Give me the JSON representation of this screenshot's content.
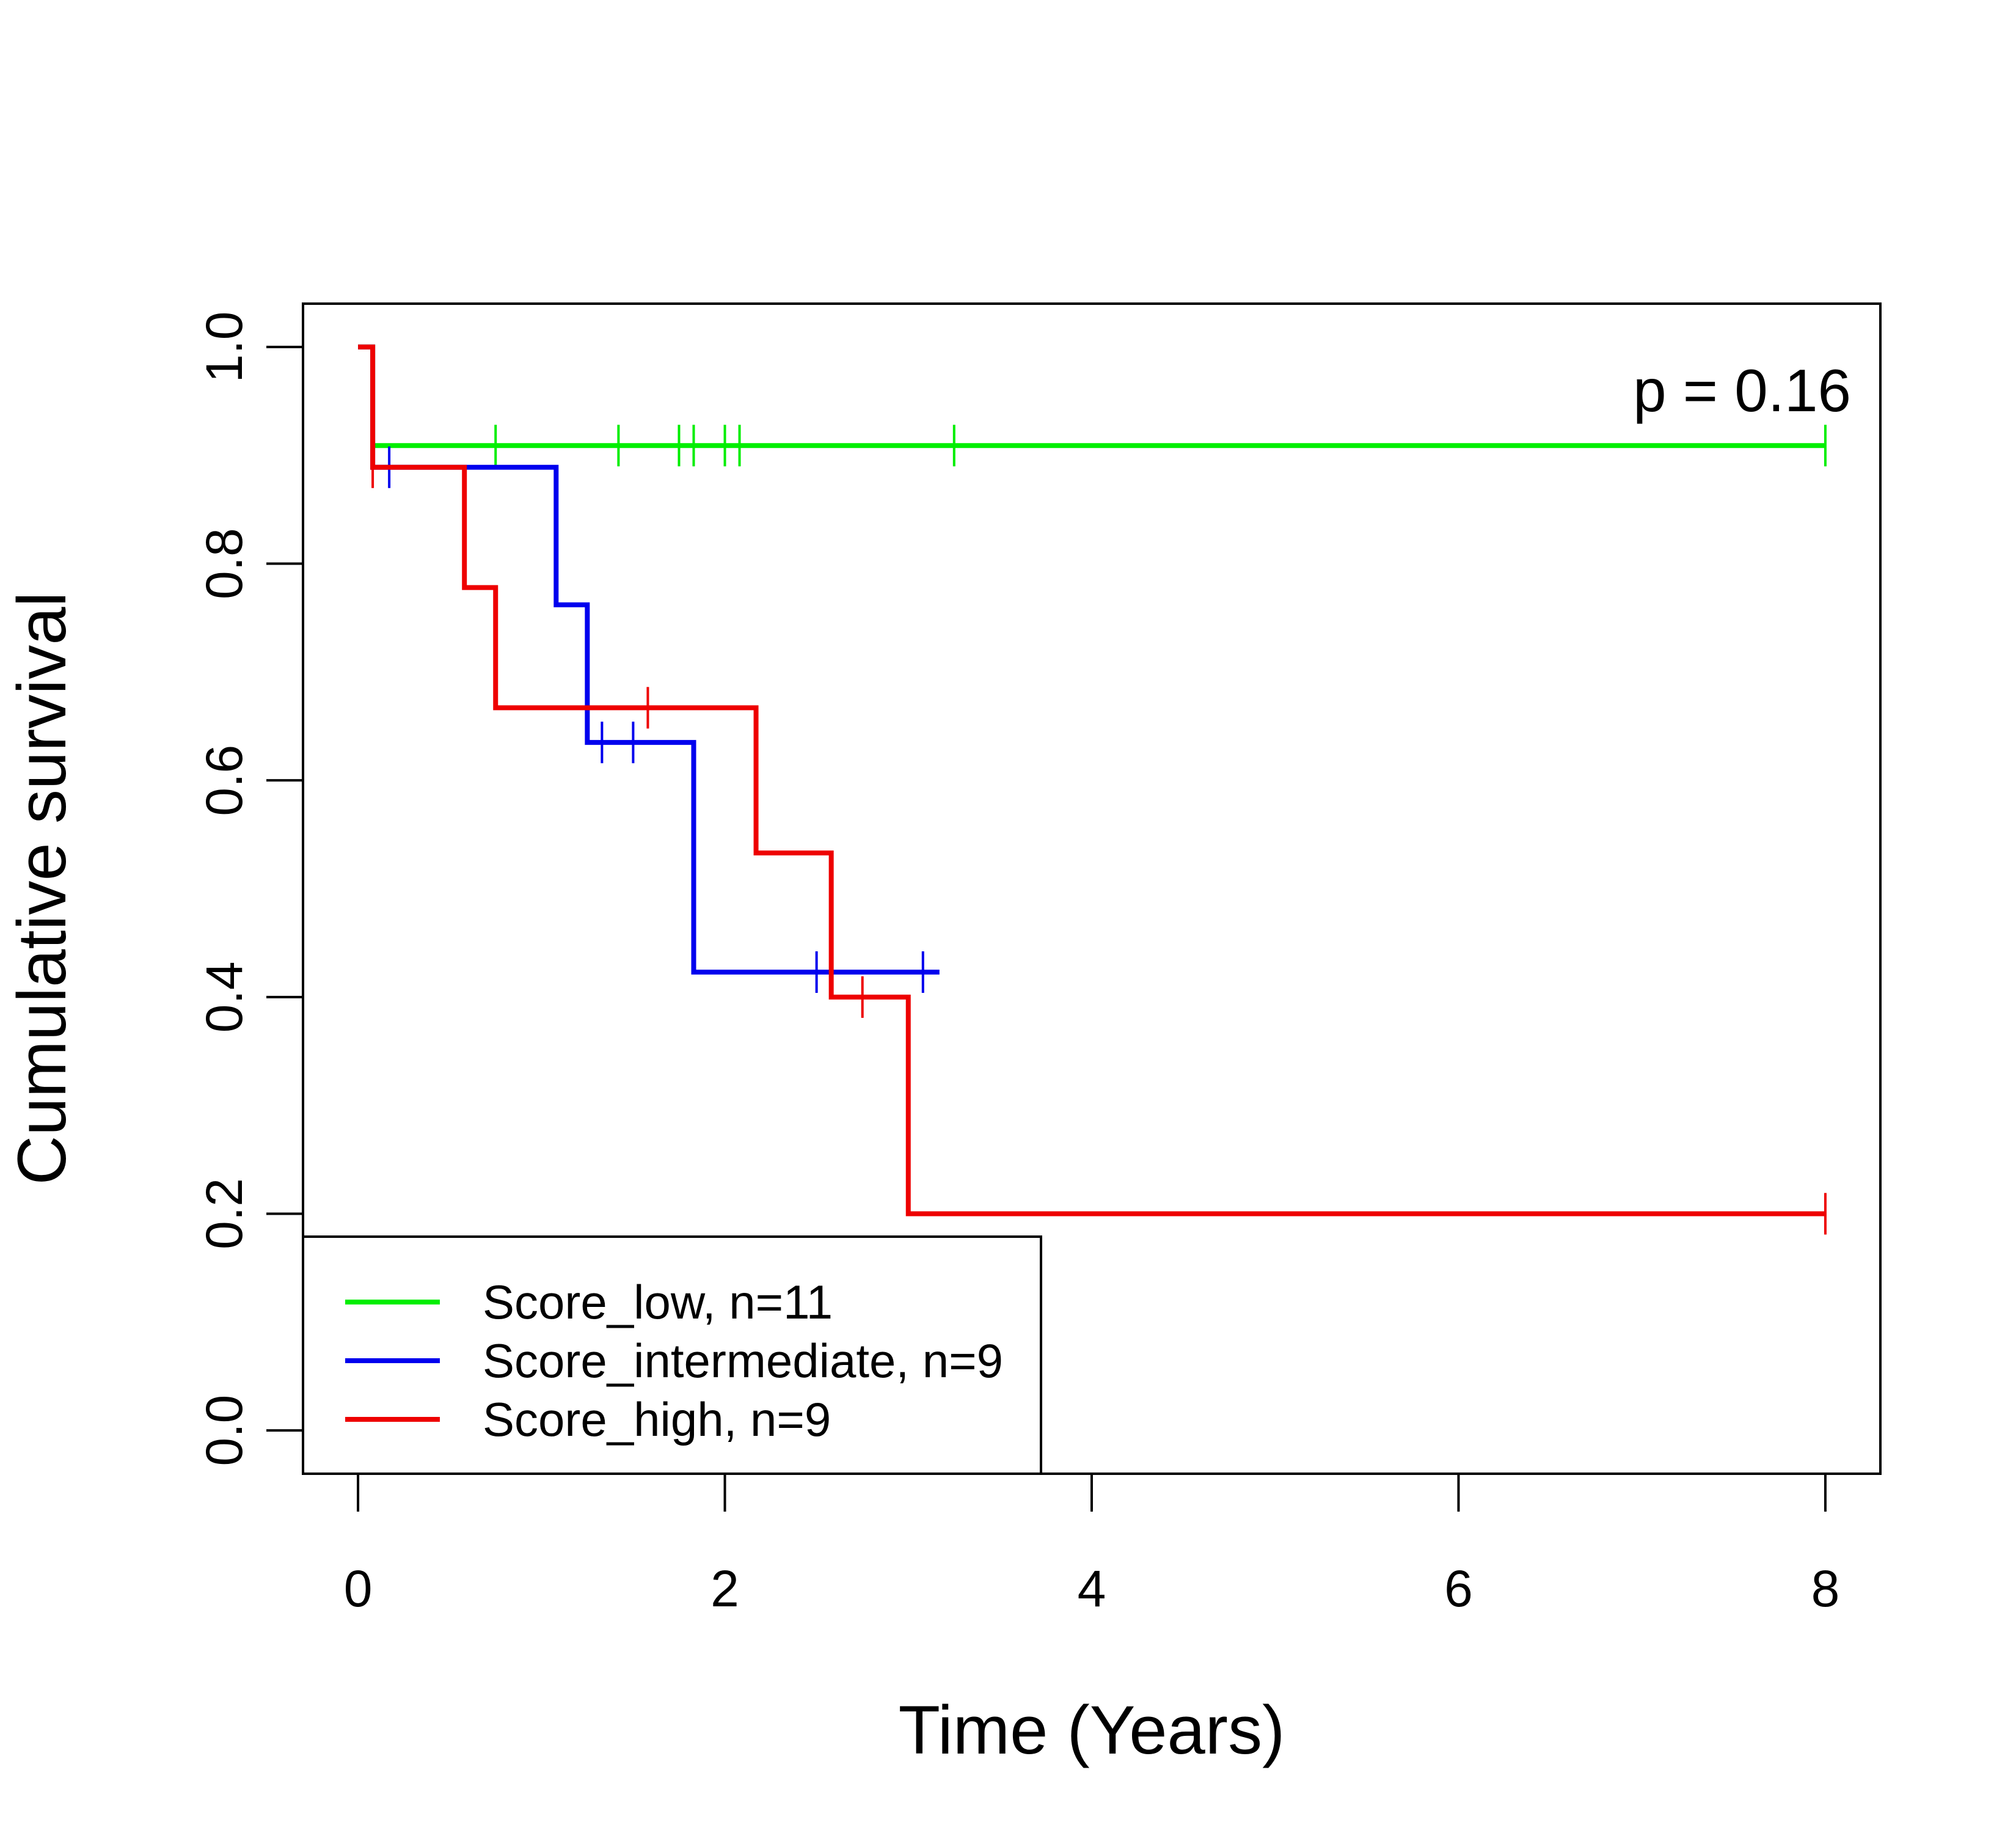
{
  "chart_data": {
    "type": "line",
    "subtype": "kaplan-meier step",
    "xlabel": "Time (Years)",
    "ylabel": "Cumulative survival",
    "xlim": [
      -0.3,
      8.3
    ],
    "ylim": [
      -0.04,
      1.04
    ],
    "xticks": [
      0,
      2,
      4,
      6,
      8
    ],
    "yticks": [
      0.0,
      0.2,
      0.4,
      0.6,
      0.8,
      1.0
    ],
    "xtick_labels": [
      "0",
      "2",
      "4",
      "6",
      "8"
    ],
    "ytick_labels": [
      "0.0",
      "0.2",
      "0.4",
      "0.6",
      "0.8",
      "1.0"
    ],
    "annotation": "p = 0.16",
    "legend_position": "bottom-left",
    "series": [
      {
        "name": "Score_low, n=11",
        "color": "#00ee00",
        "steps": [
          [
            0,
            1.0
          ],
          [
            0.08,
            0.909
          ],
          [
            8.0,
            0.909
          ]
        ],
        "censor_times": [
          0.75,
          1.42,
          1.75,
          1.83,
          2.0,
          2.08,
          3.25,
          8.0
        ]
      },
      {
        "name": "Score_intermediate, n=9",
        "color": "#0000ee",
        "steps": [
          [
            0,
            1.0
          ],
          [
            0.08,
            0.889
          ],
          [
            1.08,
            0.762
          ],
          [
            1.25,
            0.635
          ],
          [
            1.83,
            0.423
          ],
          [
            3.17,
            0.423
          ]
        ],
        "censor_times": [
          0.17,
          1.33,
          1.5,
          2.5,
          3.08
        ]
      },
      {
        "name": "Score_high, n=9",
        "color": "#ee0000",
        "steps": [
          [
            0,
            1.0
          ],
          [
            0.08,
            0.889
          ],
          [
            0.58,
            0.778
          ],
          [
            0.75,
            0.667
          ],
          [
            2.17,
            0.533
          ],
          [
            2.58,
            0.4
          ],
          [
            3.0,
            0.2
          ],
          [
            8.0,
            0.2
          ]
        ],
        "censor_times": [
          0.08,
          1.58,
          2.75,
          8.0
        ]
      }
    ]
  }
}
